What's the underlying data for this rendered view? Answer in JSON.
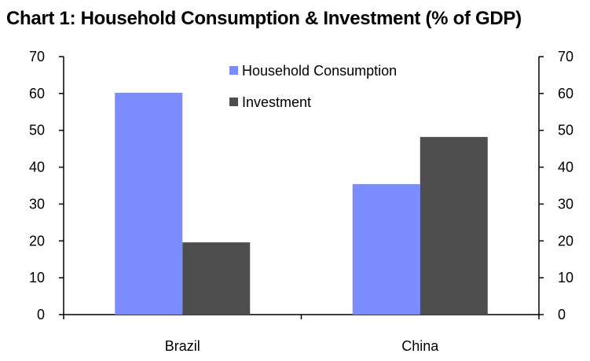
{
  "chart_data": {
    "type": "bar",
    "title": "Chart 1: Household Consumption & Investment (% of GDP)",
    "categories": [
      "Brazil",
      "China"
    ],
    "series": [
      {
        "name": "Household Consumption",
        "values": [
          60.2,
          35.4
        ],
        "color": "#7b8cff"
      },
      {
        "name": "Investment",
        "values": [
          19.6,
          48.2
        ],
        "color": "#4d4d4d"
      }
    ],
    "ylim": [
      0,
      70
    ],
    "yticks": [
      0,
      10,
      20,
      30,
      40,
      50,
      60,
      70
    ],
    "secondary_yaxis": true,
    "grid": false,
    "legend_position": "top-center"
  }
}
